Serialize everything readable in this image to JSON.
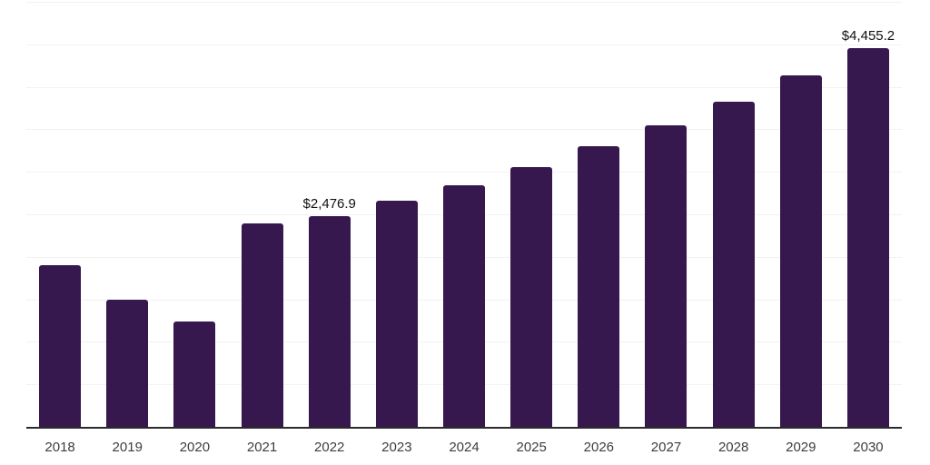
{
  "chart_data": {
    "type": "bar",
    "title": "",
    "xlabel": "",
    "ylabel": "",
    "categories": [
      "2018",
      "2019",
      "2020",
      "2021",
      "2022",
      "2023",
      "2024",
      "2025",
      "2026",
      "2027",
      "2028",
      "2029",
      "2030"
    ],
    "values": [
      1900,
      1500,
      1240,
      2390,
      2476.9,
      2660,
      2845,
      3060,
      3300,
      3545,
      3830,
      4130,
      4455.2
    ],
    "data_labels": [
      null,
      null,
      null,
      null,
      "$2,476.9",
      null,
      null,
      null,
      null,
      null,
      null,
      null,
      "$4,455.2"
    ],
    "ylim": [
      0,
      5000
    ],
    "gridline_interval": 500,
    "grid": true,
    "legend": "none",
    "y_axis_labels_visible": false,
    "bar_color": "#36174e",
    "axis_color": "#2b2b2b",
    "gridline_color": "#f2f2f2",
    "tick_label_color": "#3d3d3d",
    "data_label_color": "#111111",
    "background_color": "#ffffff"
  }
}
